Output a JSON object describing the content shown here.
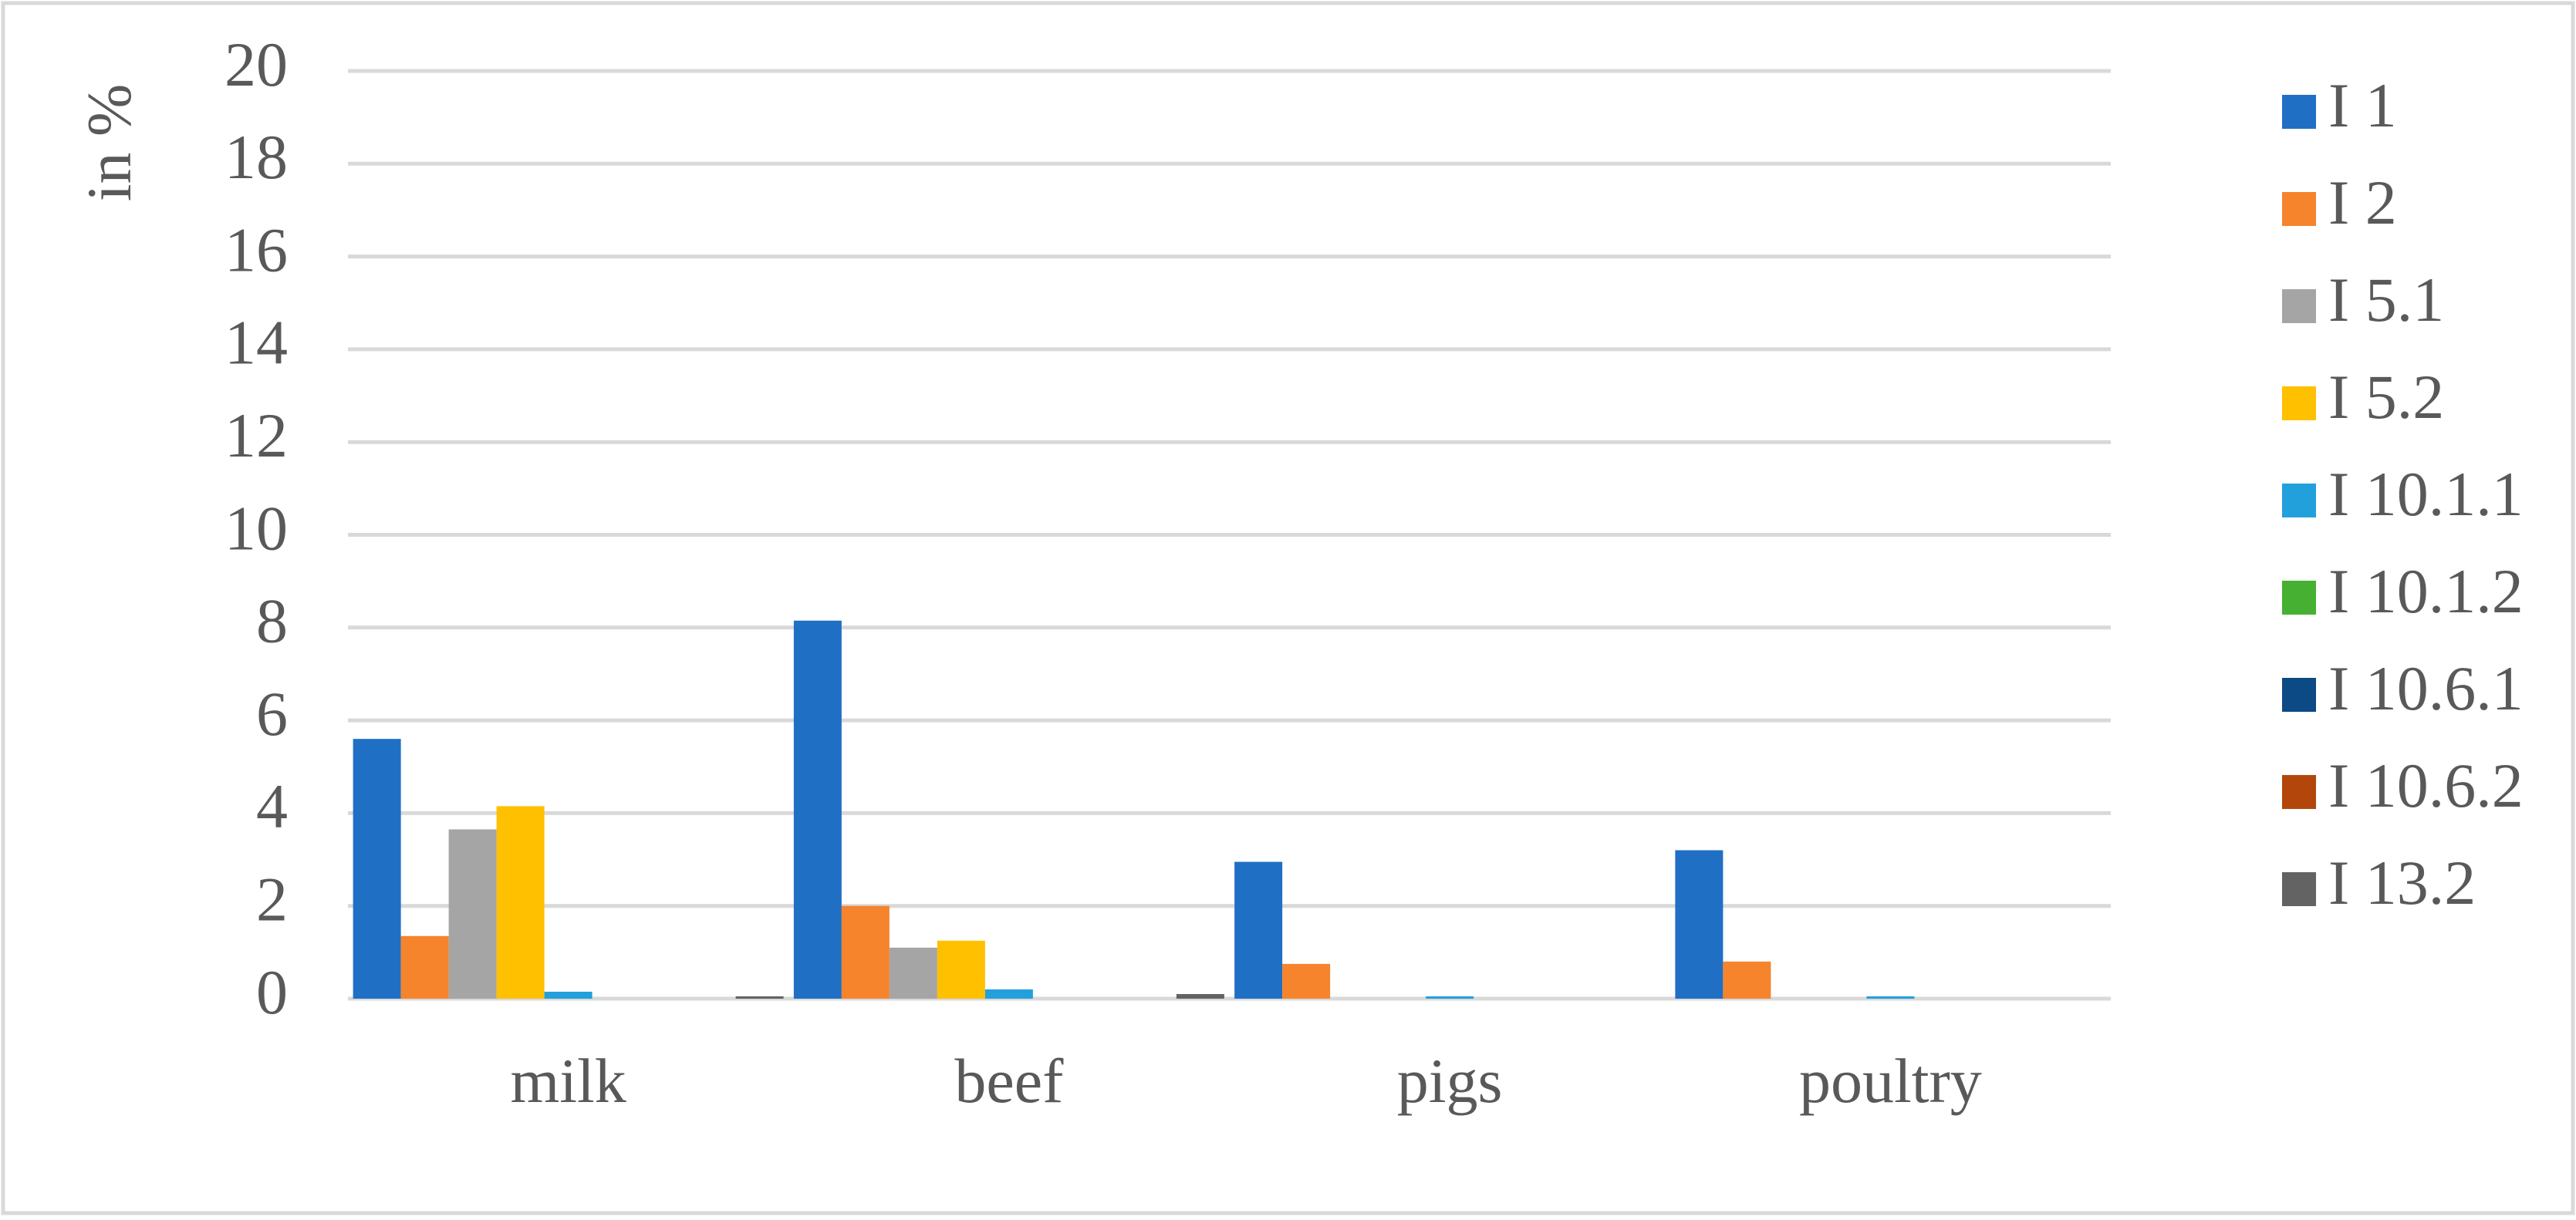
{
  "chart_data": {
    "type": "bar",
    "y_label": "in %",
    "categories": [
      "milk",
      "beef",
      "pigs",
      "poultry"
    ],
    "series": [
      {
        "name": "I 1",
        "color": "#1f6fc5",
        "values": [
          5.6,
          8.15,
          2.95,
          3.2
        ]
      },
      {
        "name": "I 2",
        "color": "#f5842c",
        "values": [
          1.35,
          2.0,
          0.75,
          0.8
        ]
      },
      {
        "name": "I 5.1",
        "color": "#a5a5a5",
        "values": [
          3.65,
          1.1,
          0,
          0
        ]
      },
      {
        "name": "I 5.2",
        "color": "#ffc000",
        "values": [
          4.15,
          1.25,
          0,
          0
        ]
      },
      {
        "name": "I 10.1.1",
        "color": "#22a0dc",
        "values": [
          0.15,
          0.2,
          0.05,
          0.05
        ]
      },
      {
        "name": "I 10.1.2",
        "color": "#46b033",
        "values": [
          0,
          0,
          0,
          0
        ]
      },
      {
        "name": "I 10.6.1",
        "color": "#0b4a84",
        "values": [
          0,
          0,
          0,
          0
        ]
      },
      {
        "name": "I 10.6.2",
        "color": "#b3470b",
        "values": [
          0,
          0,
          0,
          0
        ]
      },
      {
        "name": "I 13.2",
        "color": "#636363",
        "values": [
          0.05,
          0.1,
          0,
          0
        ]
      }
    ],
    "ylim": [
      0,
      20
    ],
    "yticks": [
      0,
      2,
      4,
      6,
      8,
      10,
      12,
      14,
      16,
      18,
      20
    ],
    "grid": true,
    "legend": "right"
  }
}
